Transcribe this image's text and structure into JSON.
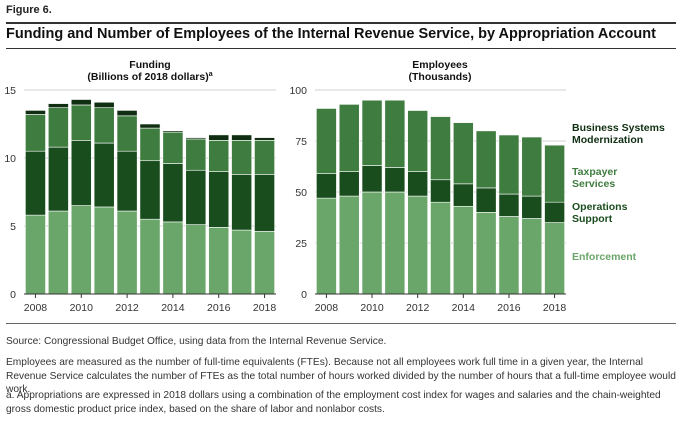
{
  "figure_label": "Figure 6.",
  "title": "Funding and Number of Employees of the Internal Revenue Service, by Appropriation Account",
  "colors": {
    "enforcement": "#6aa56a",
    "operations_support": "#1a4d1e",
    "taxpayer_services": "#3f7c3f",
    "bsm": "#0f2e12",
    "grid": "#d0d0d0",
    "axis": "#333333"
  },
  "chart_data": [
    {
      "type": "bar",
      "stacked": true,
      "title": "Funding",
      "subtitle": "(Billions of 2018 dollars)",
      "superscript": "a",
      "x": [
        2008,
        2009,
        2010,
        2011,
        2012,
        2013,
        2014,
        2015,
        2016,
        2017,
        2018
      ],
      "xticks": [
        "2008",
        "2010",
        "2012",
        "2014",
        "2016",
        "2018"
      ],
      "ylim": [
        0,
        15
      ],
      "yticks": [
        "0",
        "5",
        "10",
        "15"
      ],
      "series": [
        {
          "name": "Enforcement",
          "values": [
            5.8,
            6.1,
            6.5,
            6.4,
            6.1,
            5.5,
            5.3,
            5.1,
            4.9,
            4.7,
            4.6
          ]
        },
        {
          "name": "Operations Support",
          "values": [
            4.7,
            4.7,
            4.8,
            4.7,
            4.4,
            4.3,
            4.3,
            4.0,
            4.1,
            4.1,
            4.2
          ]
        },
        {
          "name": "Taxpayer Services",
          "values": [
            2.7,
            2.9,
            2.6,
            2.6,
            2.6,
            2.4,
            2.3,
            2.3,
            2.3,
            2.5,
            2.5
          ]
        },
        {
          "name": "Business Systems Modernization",
          "values": [
            0.3,
            0.3,
            0.4,
            0.4,
            0.4,
            0.3,
            0.1,
            0.1,
            0.4,
            0.4,
            0.2
          ]
        }
      ]
    },
    {
      "type": "bar",
      "stacked": true,
      "title": "Employees",
      "subtitle": "(Thousands)",
      "x": [
        2008,
        2009,
        2010,
        2011,
        2012,
        2013,
        2014,
        2015,
        2016,
        2017,
        2018
      ],
      "xticks": [
        "2008",
        "2010",
        "2012",
        "2014",
        "2016",
        "2018"
      ],
      "ylim": [
        0,
        100
      ],
      "yticks": [
        "0",
        "25",
        "50",
        "75",
        "100"
      ],
      "series": [
        {
          "name": "Enforcement",
          "values": [
            47,
            48,
            50,
            50,
            48,
            45,
            43,
            40,
            38,
            37,
            35
          ]
        },
        {
          "name": "Operations Support",
          "values": [
            12,
            12,
            13,
            12,
            12,
            11,
            11,
            12,
            11,
            11,
            10
          ]
        },
        {
          "name": "Taxpayer Services",
          "values": [
            32,
            33,
            32,
            33,
            30,
            31,
            30,
            28,
            29,
            29,
            28
          ]
        },
        {
          "name": "Business Systems Modernization",
          "values": [
            0.3,
            0.3,
            0.3,
            0.3,
            0.3,
            0.3,
            0.3,
            0.3,
            0.3,
            0.3,
            0.3
          ]
        }
      ]
    }
  ],
  "legend": [
    {
      "key": "bsm",
      "lines": [
        "Business Systems",
        "Modernization"
      ]
    },
    {
      "key": "taxpayer_services",
      "lines": [
        "Taxpayer",
        "Services"
      ]
    },
    {
      "key": "operations_support",
      "lines": [
        "Operations",
        "Support"
      ]
    },
    {
      "key": "enforcement",
      "lines": [
        "Enforcement"
      ]
    }
  ],
  "notes": {
    "source": "Source: Congressional Budget Office, using data from the Internal Revenue Service.",
    "employees": "Employees are measured as the number of full-time equivalents (FTEs). Because not all employees work full time in a given year, the Internal Revenue Service calculates the number of FTEs as the total number of hours worked divided by the number of hours that a full-time employee would work.",
    "footnote": "a. Appropriations are expressed in 2018 dollars using a combination of the employment cost index for wages and salaries and the chain-weighted gross domestic product price index, based on the share of labor and nonlabor costs."
  }
}
